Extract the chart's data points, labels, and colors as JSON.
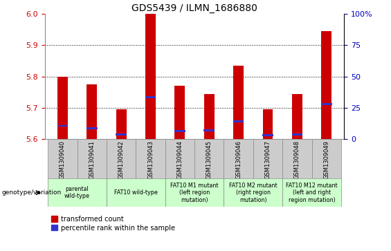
{
  "title": "GDS5439 / ILMN_1686880",
  "samples": [
    "GSM1309040",
    "GSM1309041",
    "GSM1309042",
    "GSM1309043",
    "GSM1309044",
    "GSM1309045",
    "GSM1309046",
    "GSM1309047",
    "GSM1309048",
    "GSM1309049"
  ],
  "red_values": [
    5.8,
    5.775,
    5.695,
    6.0,
    5.77,
    5.745,
    5.835,
    5.695,
    5.745,
    5.945
  ],
  "blue_values": [
    5.643,
    5.635,
    5.615,
    5.735,
    5.627,
    5.628,
    5.657,
    5.613,
    5.615,
    5.712
  ],
  "ylim_left": [
    5.6,
    6.0
  ],
  "yticks_left": [
    5.6,
    5.7,
    5.8,
    5.9,
    6.0
  ],
  "ylim_right": [
    0,
    100
  ],
  "yticks_right": [
    0,
    25,
    50,
    75,
    100
  ],
  "yticklabels_right": [
    "0",
    "25",
    "50",
    "75",
    "100%"
  ],
  "bar_color": "#cc0000",
  "blue_color": "#3333cc",
  "bar_width": 0.35,
  "baseline": 5.6,
  "groups": [
    {
      "label": "parental\nwild-type",
      "start": 0,
      "end": 1
    },
    {
      "label": "FAT10 wild-type",
      "start": 2,
      "end": 3
    },
    {
      "label": "FAT10 M1 mutant\n(left region\nmutation)",
      "start": 4,
      "end": 5
    },
    {
      "label": "FAT10 M2 mutant\n(right region\nmutation)",
      "start": 6,
      "end": 7
    },
    {
      "label": "FAT10 M12 mutant\n(left and right\nregion mutation)",
      "start": 8,
      "end": 9
    }
  ],
  "legend_red": "transformed count",
  "legend_blue": "percentile rank within the sample",
  "genotype_label": "genotype/variation",
  "tick_color_left": "#cc0000",
  "tick_color_right": "#0000bb",
  "sample_box_color": "#cccccc",
  "geno_box_color": "#ccffcc"
}
